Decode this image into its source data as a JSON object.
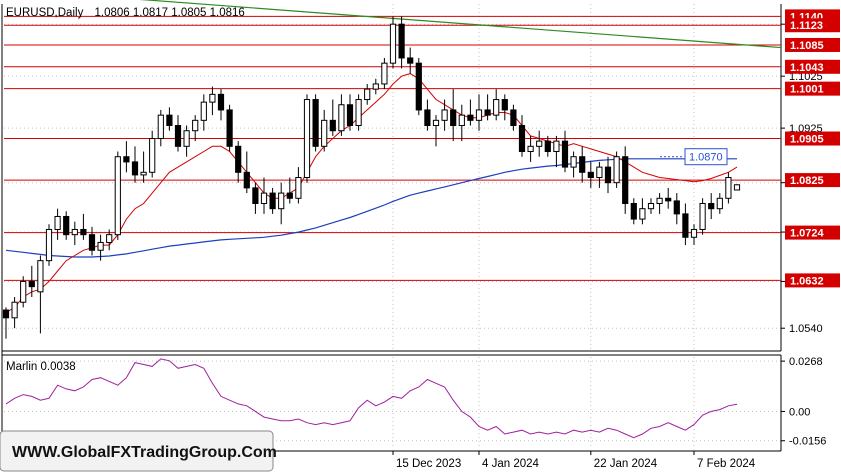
{
  "header": {
    "symbol": "EURUSD,Daily",
    "ohlc": "1.0806 1.0817 1.0805 1.0816"
  },
  "chart_data": [
    {
      "type": "candlestick",
      "title": "EURUSD,Daily",
      "ylim": [
        1.05,
        1.116
      ],
      "y_ticks": [
        "1.0540",
        "1.0630",
        "1.0725",
        "1.0820",
        "1.0925",
        "1.1025",
        "1.1125"
      ],
      "x_labels": [
        {
          "index": 45,
          "label": "15 Dec 2023"
        },
        {
          "index": 55,
          "label": "4 Jan 2024"
        },
        {
          "index": 68,
          "label": "22 Jan 2024"
        },
        {
          "index": 80,
          "label": "7 Feb 2024"
        }
      ],
      "levels": [
        {
          "value": 1.114,
          "label": "1.1140",
          "color": "#d40000"
        },
        {
          "value": 1.1123,
          "label": "1.1123",
          "color": "#d40000"
        },
        {
          "value": 1.1085,
          "label": "1.1085",
          "color": "#d40000"
        },
        {
          "value": 1.1043,
          "label": "1.1043",
          "color": "#d40000"
        },
        {
          "value": 1.1001,
          "label": "1.1001",
          "color": "#d40000"
        },
        {
          "value": 1.0905,
          "label": "1.0905",
          "color": "#d40000"
        },
        {
          "value": 1.0825,
          "label": "1.0825",
          "color": "#d40000"
        },
        {
          "value": 1.0724,
          "label": "1.0724",
          "color": "#d40000"
        },
        {
          "value": 1.0632,
          "label": "1.0632",
          "color": "#d40000"
        }
      ],
      "marker": {
        "value": 1.087,
        "label": "1.0870",
        "color": "#2b50d8"
      },
      "trendline": {
        "from": [
          0,
          1.1192
        ],
        "to": [
          115,
          1.108
        ],
        "color": "#2e8b22"
      },
      "candles": [
        [
          1.0575,
          1.058,
          1.052,
          1.056
        ],
        [
          1.056,
          1.06,
          1.054,
          1.059
        ],
        [
          1.059,
          1.064,
          1.058,
          1.063
        ],
        [
          1.063,
          1.066,
          1.06,
          1.062
        ],
        [
          1.061,
          1.068,
          1.053,
          1.067
        ],
        [
          1.067,
          1.074,
          1.066,
          1.073
        ],
        [
          1.073,
          1.077,
          1.071,
          1.0755
        ],
        [
          1.0755,
          1.0765,
          1.071,
          1.072
        ],
        [
          1.072,
          1.0745,
          1.07,
          1.073
        ],
        [
          1.073,
          1.076,
          1.071,
          1.072
        ],
        [
          1.072,
          1.0735,
          1.068,
          1.069
        ],
        [
          1.069,
          1.072,
          1.067,
          1.0705
        ],
        [
          1.0705,
          1.073,
          1.069,
          1.072
        ],
        [
          1.072,
          1.088,
          1.071,
          1.087
        ],
        [
          1.087,
          1.09,
          1.084,
          1.086
        ],
        [
          1.086,
          1.089,
          1.082,
          1.0835
        ],
        [
          1.0835,
          1.088,
          1.082,
          1.084
        ],
        [
          1.084,
          1.092,
          1.083,
          1.0905
        ],
        [
          1.0905,
          1.096,
          1.089,
          1.095
        ],
        [
          1.095,
          1.0965,
          1.092,
          1.093
        ],
        [
          1.093,
          1.095,
          1.088,
          1.089
        ],
        [
          1.089,
          1.093,
          1.087,
          1.092
        ],
        [
          1.092,
          1.095,
          1.09,
          1.094
        ],
        [
          1.094,
          1.099,
          1.092,
          1.0975
        ],
        [
          1.0975,
          1.1005,
          1.095,
          1.099
        ],
        [
          1.099,
          1.1,
          1.094,
          1.096
        ],
        [
          1.096,
          1.097,
          1.088,
          1.089
        ],
        [
          1.089,
          1.09,
          1.082,
          1.084
        ],
        [
          1.084,
          1.088,
          1.08,
          1.081
        ],
        [
          1.081,
          1.082,
          1.076,
          1.078
        ],
        [
          1.078,
          1.083,
          1.076,
          1.08
        ],
        [
          1.08,
          1.081,
          1.076,
          1.077
        ],
        [
          1.077,
          1.082,
          1.074,
          1.08
        ],
        [
          1.08,
          1.083,
          1.078,
          1.079
        ],
        [
          1.079,
          1.085,
          1.078,
          1.083
        ],
        [
          1.083,
          1.099,
          1.082,
          1.098
        ],
        [
          1.098,
          1.099,
          1.088,
          1.089
        ],
        [
          1.089,
          1.096,
          1.088,
          1.094
        ],
        [
          1.094,
          1.098,
          1.091,
          1.092
        ],
        [
          1.092,
          1.099,
          1.091,
          1.097
        ],
        [
          1.097,
          1.099,
          1.092,
          1.093
        ],
        [
          1.093,
          1.099,
          1.092,
          1.098
        ],
        [
          1.098,
          1.101,
          1.097,
          1.1
        ],
        [
          1.1,
          1.102,
          1.099,
          1.101
        ],
        [
          1.101,
          1.106,
          1.1,
          1.105
        ],
        [
          1.105,
          1.114,
          1.104,
          1.1125
        ],
        [
          1.1125,
          1.114,
          1.104,
          1.106
        ],
        [
          1.106,
          1.108,
          1.103,
          1.105
        ],
        [
          1.105,
          1.106,
          1.095,
          1.096
        ],
        [
          1.096,
          1.098,
          1.092,
          1.093
        ],
        [
          1.093,
          1.095,
          1.089,
          1.094
        ],
        [
          1.094,
          1.098,
          1.092,
          1.096
        ],
        [
          1.096,
          1.1,
          1.09,
          1.093
        ],
        [
          1.093,
          1.097,
          1.09,
          1.095
        ],
        [
          1.095,
          1.098,
          1.093,
          1.094
        ],
        [
          1.094,
          1.099,
          1.092,
          1.096
        ],
        [
          1.096,
          1.099,
          1.094,
          1.095
        ],
        [
          1.095,
          1.1,
          1.094,
          1.098
        ],
        [
          1.098,
          1.099,
          1.094,
          1.096
        ],
        [
          1.096,
          1.097,
          1.092,
          1.093
        ],
        [
          1.093,
          1.095,
          1.087,
          1.088
        ],
        [
          1.088,
          1.091,
          1.086,
          1.089
        ],
        [
          1.089,
          1.092,
          1.087,
          1.09
        ],
        [
          1.09,
          1.091,
          1.087,
          1.088
        ],
        [
          1.088,
          1.091,
          1.085,
          1.09
        ],
        [
          1.09,
          1.092,
          1.084,
          1.085
        ],
        [
          1.085,
          1.088,
          1.083,
          1.087
        ],
        [
          1.087,
          1.089,
          1.082,
          1.084
        ],
        [
          1.084,
          1.086,
          1.081,
          1.083
        ],
        [
          1.083,
          1.086,
          1.081,
          1.085
        ],
        [
          1.085,
          1.087,
          1.08,
          1.082
        ],
        [
          1.082,
          1.088,
          1.081,
          1.087
        ],
        [
          1.087,
          1.089,
          1.076,
          1.078
        ],
        [
          1.078,
          1.079,
          1.074,
          1.075
        ],
        [
          1.075,
          1.079,
          1.074,
          1.077
        ],
        [
          1.077,
          1.079,
          1.076,
          1.078
        ],
        [
          1.078,
          1.08,
          1.076,
          1.079
        ],
        [
          1.079,
          1.081,
          1.077,
          1.0785
        ],
        [
          1.0785,
          1.08,
          1.074,
          1.076
        ],
        [
          1.076,
          1.078,
          1.07,
          1.0715
        ],
        [
          1.0715,
          1.074,
          1.07,
          1.073
        ],
        [
          1.073,
          1.079,
          1.072,
          1.078
        ],
        [
          1.078,
          1.08,
          1.075,
          1.077
        ],
        [
          1.077,
          1.08,
          1.076,
          1.079
        ],
        [
          1.079,
          1.084,
          1.078,
          1.083
        ],
        [
          1.0806,
          1.0817,
          1.0805,
          1.0816
        ]
      ],
      "ma_red": [
        1.057,
        1.058,
        1.06,
        1.061,
        1.0615,
        1.063,
        1.065,
        1.067,
        1.068,
        1.069,
        1.0695,
        1.07,
        1.07,
        1.072,
        1.075,
        1.077,
        1.078,
        1.08,
        1.082,
        1.084,
        1.085,
        1.086,
        1.087,
        1.088,
        1.089,
        1.089,
        1.088,
        1.086,
        1.084,
        1.082,
        1.08,
        1.079,
        1.079,
        1.08,
        1.081,
        1.084,
        1.087,
        1.089,
        1.0905,
        1.092,
        1.093,
        1.0945,
        1.096,
        1.0975,
        1.099,
        1.101,
        1.1025,
        1.103,
        1.102,
        1.1,
        1.098,
        1.097,
        1.096,
        1.095,
        1.0945,
        1.0945,
        1.095,
        1.0955,
        1.0955,
        1.095,
        1.093,
        1.091,
        1.0905,
        1.09,
        1.0895,
        1.089,
        1.0895,
        1.089,
        1.0885,
        1.088,
        1.0875,
        1.087,
        1.086,
        1.085,
        1.084,
        1.0835,
        1.083,
        1.0828,
        1.0826,
        1.0824,
        1.0822,
        1.0824,
        1.0828,
        1.0834,
        1.084,
        1.085
      ],
      "ma_blue": [
        1.069,
        1.0688,
        1.0686,
        1.0684,
        1.0682,
        1.068,
        1.0679,
        1.0678,
        1.0677,
        1.0677,
        1.0677,
        1.0678,
        1.0679,
        1.0681,
        1.0683,
        1.0686,
        1.0689,
        1.0692,
        1.0695,
        1.0698,
        1.07,
        1.0702,
        1.0704,
        1.0706,
        1.0708,
        1.071,
        1.0711,
        1.0712,
        1.0713,
        1.0714,
        1.0715,
        1.0717,
        1.0719,
        1.0722,
        1.0725,
        1.0729,
        1.0733,
        1.0738,
        1.0743,
        1.0748,
        1.0753,
        1.0759,
        1.0765,
        1.0771,
        1.0777,
        1.0784,
        1.079,
        1.0796,
        1.08,
        1.0804,
        1.0808,
        1.0812,
        1.0816,
        1.082,
        1.0824,
        1.0828,
        1.0832,
        1.0836,
        1.084,
        1.0843,
        1.0846,
        1.0848,
        1.085,
        1.0852,
        1.0853,
        1.0855,
        1.0857,
        1.0859,
        1.0861,
        1.0863,
        1.0864,
        1.0865,
        1.0866,
        1.0866,
        1.0866,
        1.0866,
        1.0866,
        1.0866,
        1.0866,
        1.0866,
        1.0866,
        1.0866,
        1.0866,
        1.0866,
        1.0866,
        1.0866
      ]
    },
    {
      "type": "line",
      "title": "Marlin 0.0038",
      "ylim": [
        -0.02,
        0.029
      ],
      "y_ticks": [
        "0.0268",
        "0.00",
        "-0.0156"
      ],
      "series": [
        {
          "color": "#a020a0",
          "values": [
            0.004,
            0.007,
            0.009,
            0.008,
            0.006,
            0.007,
            0.014,
            0.012,
            0.011,
            0.013,
            0.017,
            0.018,
            0.016,
            0.014,
            0.018,
            0.026,
            0.025,
            0.024,
            0.028,
            0.027,
            0.023,
            0.024,
            0.025,
            0.023,
            0.015,
            0.008,
            0.006,
            0.004,
            0.003,
            0.0,
            -0.003,
            -0.004,
            -0.005,
            -0.005,
            -0.004,
            -0.006,
            -0.007,
            -0.006,
            -0.007,
            -0.006,
            -0.005,
            0.002,
            0.006,
            0.003,
            0.005,
            0.008,
            0.007,
            0.011,
            0.013,
            0.017,
            0.015,
            0.013,
            0.006,
            0.0,
            -0.003,
            -0.008,
            -0.01,
            -0.008,
            -0.012,
            -0.011,
            -0.01,
            -0.012,
            -0.011,
            -0.012,
            -0.011,
            -0.012,
            -0.01,
            -0.011,
            -0.01,
            -0.011,
            -0.009,
            -0.01,
            -0.012,
            -0.014,
            -0.012,
            -0.009,
            -0.008,
            -0.006,
            -0.008,
            -0.01,
            -0.007,
            -0.002,
            0.0,
            0.001,
            0.003,
            0.0038
          ]
        }
      ]
    }
  ],
  "watermark": "WWW.GlobalFXTradingGroup.Com",
  "colors": {
    "bull": "#ffffff",
    "bear": "#000000",
    "grid": "#c0c0c0",
    "level": "#d40000",
    "ma_red": "#d40000",
    "ma_blue": "#1d3fbf",
    "osc": "#a020a0",
    "marker": "#2b50d8"
  }
}
